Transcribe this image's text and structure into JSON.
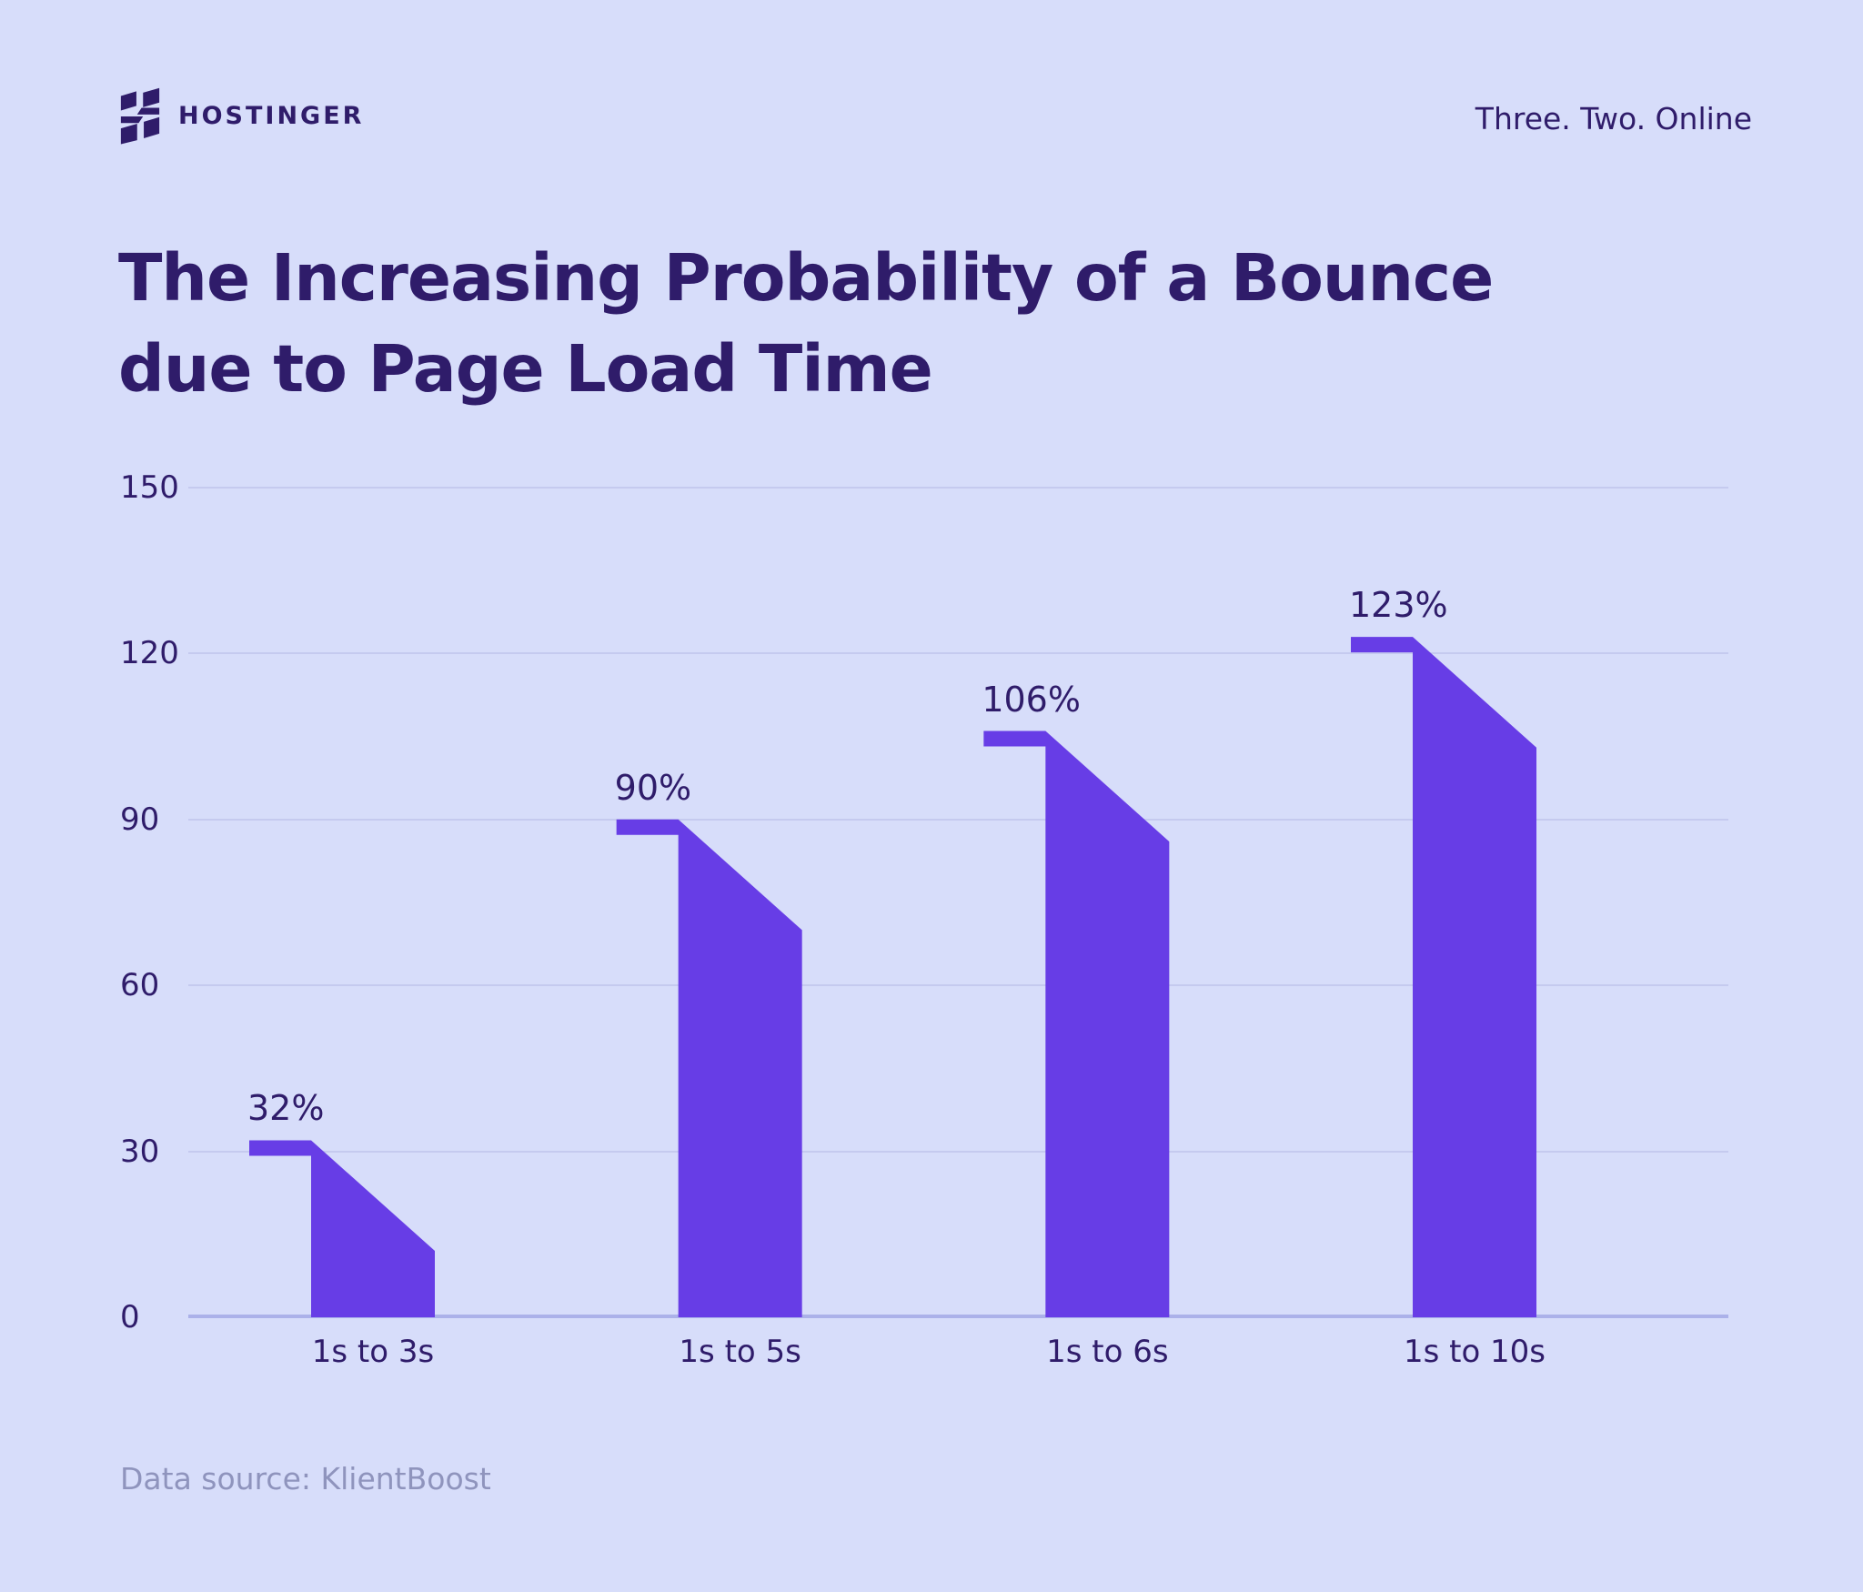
{
  "header": {
    "brand": "HOSTINGER",
    "tagline": "Three. Two. Online"
  },
  "title_line1": "The Increasing Probability of a Bounce",
  "title_line2": "due to Page Load Time",
  "footer": {
    "source": "Data source: KlientBoost"
  },
  "colors": {
    "background": "#d7ddfa",
    "bar": "#673de6",
    "dark_text": "#2f1c6a",
    "gridline": "#c5caef",
    "axis_baseline": "#abb1e9",
    "source_text": "#8f94bd"
  },
  "chart_data": {
    "type": "bar",
    "title": "The Increasing Probability of a Bounce due to Page Load Time",
    "categories": [
      "1s to 3s",
      "1s to 5s",
      "1s to 6s",
      "1s to 10s"
    ],
    "values": [
      32,
      90,
      106,
      123
    ],
    "value_labels": [
      "32%",
      "90%",
      "106%",
      "123%"
    ],
    "bar_shape": "flag-cap with top edge slanting down 20 points to the right",
    "slant_drop_points": 20,
    "bar_right_edge_values": [
      12,
      70,
      86,
      103
    ],
    "yticks": [
      150,
      120,
      90,
      60,
      30,
      0
    ],
    "ylim": [
      0,
      150
    ],
    "xlabel": "",
    "ylabel": "",
    "grid": "horizontal",
    "legend": "none",
    "bar_color": "#673de6",
    "source": "KlientBoost"
  }
}
